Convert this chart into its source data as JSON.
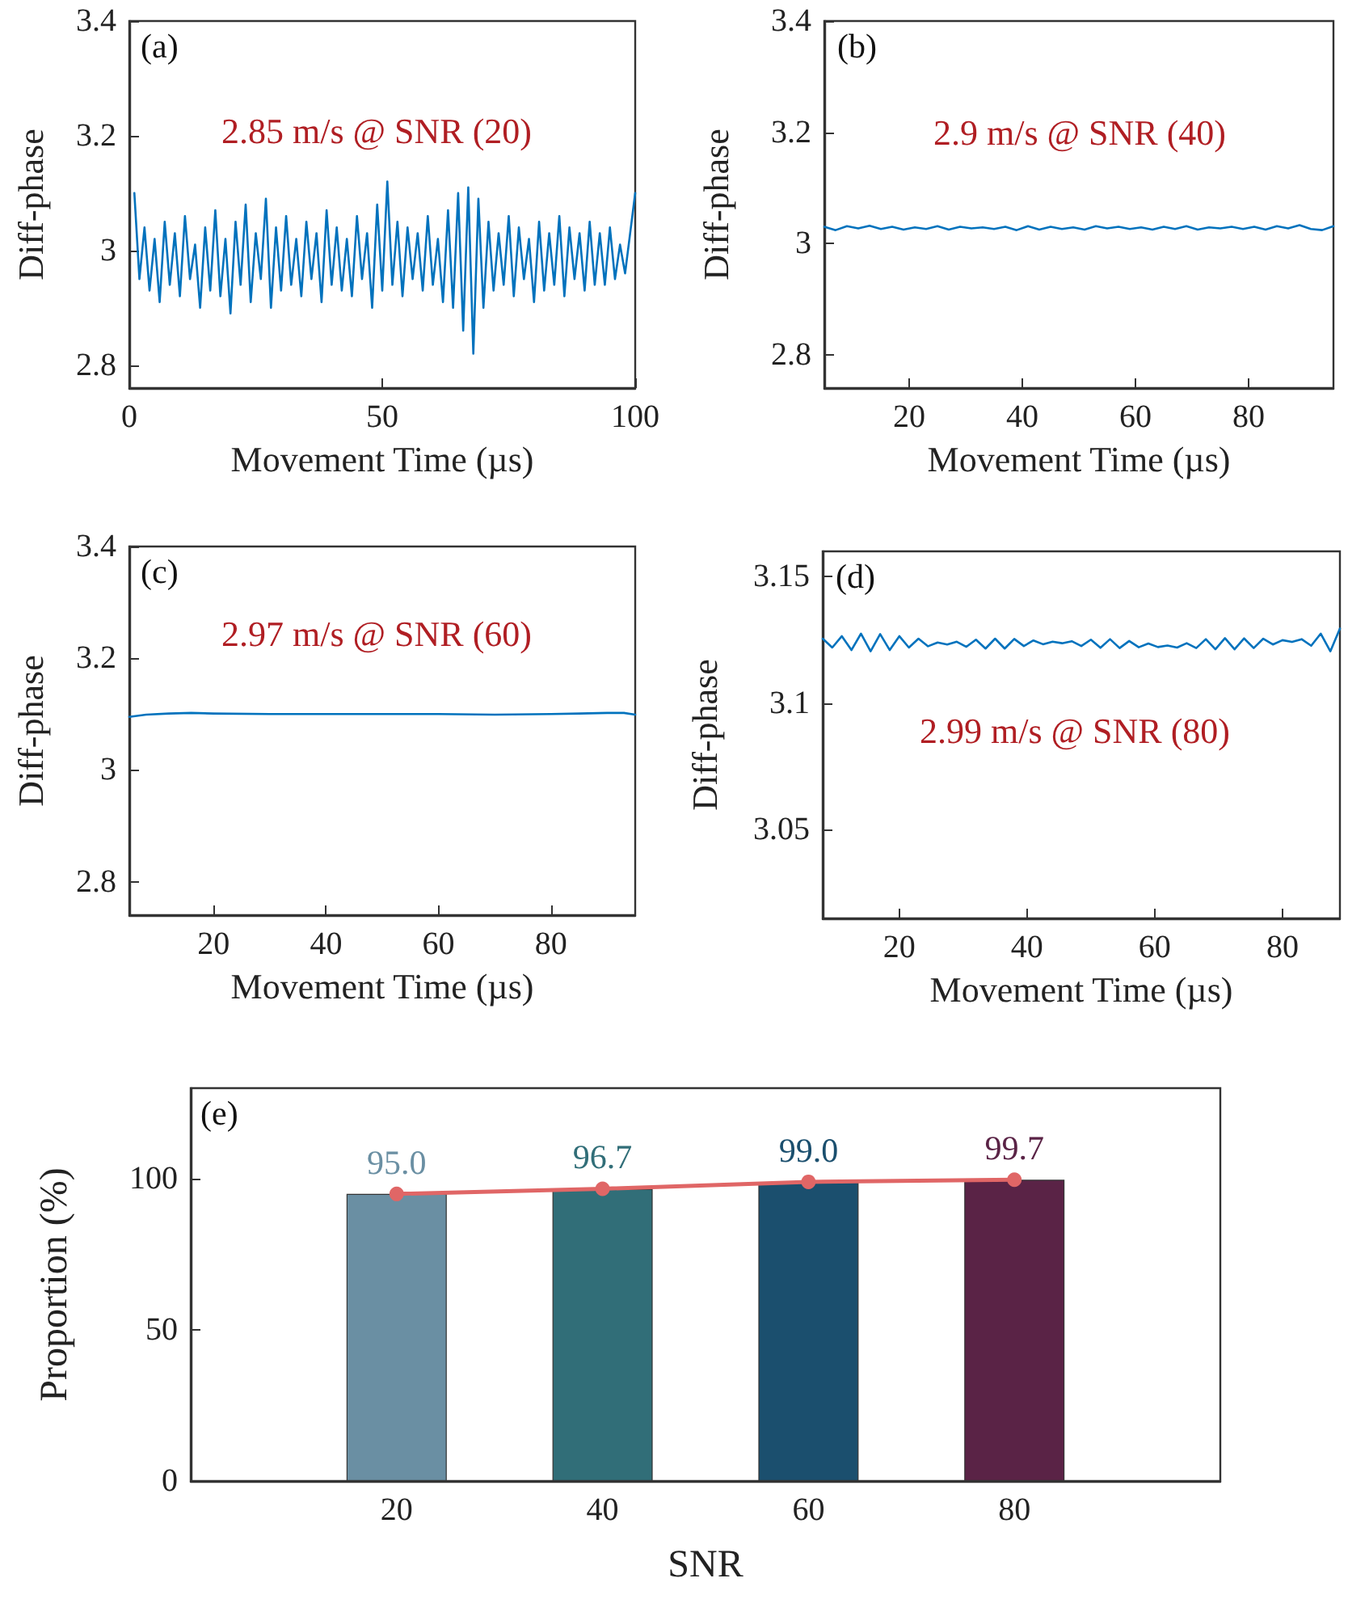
{
  "chart_data": [
    {
      "type": "line",
      "xlabel": "Movement Time (µs)",
      "ylabel": "Diff-phase",
      "annotations": [
        "(a)",
        "2.85 m/s @ SNR (20)"
      ],
      "xlim": [
        0,
        100
      ],
      "xticks": [
        0,
        50,
        100
      ],
      "ylim": [
        2.76,
        3.4
      ],
      "yticks": [
        2.8,
        3,
        3.2,
        3.4
      ],
      "grid": false,
      "series": [
        {
          "color": "#0072bd",
          "x": [
            1,
            2,
            3,
            4,
            5,
            6,
            7,
            8,
            9,
            10,
            11,
            12,
            13,
            14,
            15,
            16,
            17,
            18,
            19,
            20,
            21,
            22,
            23,
            24,
            25,
            26,
            27,
            28,
            29,
            30,
            31,
            32,
            33,
            34,
            35,
            36,
            37,
            38,
            39,
            40,
            41,
            42,
            43,
            44,
            45,
            46,
            47,
            48,
            49,
            50,
            51,
            52,
            53,
            54,
            55,
            56,
            57,
            58,
            59,
            60,
            61,
            62,
            63,
            64,
            65,
            66,
            67,
            68,
            69,
            70,
            71,
            72,
            73,
            74,
            75,
            76,
            77,
            78,
            79,
            80,
            81,
            82,
            83,
            84,
            85,
            86,
            87,
            88,
            89,
            90,
            91,
            92,
            93,
            94,
            95,
            96,
            97,
            98,
            100
          ],
          "values": [
            3.1,
            2.95,
            3.04,
            2.93,
            3.02,
            2.91,
            3.05,
            2.94,
            3.03,
            2.92,
            3.06,
            2.95,
            3.01,
            2.9,
            3.04,
            2.93,
            3.07,
            2.92,
            3.02,
            2.89,
            3.05,
            2.94,
            3.08,
            2.91,
            3.03,
            2.95,
            3.09,
            2.9,
            3.04,
            2.93,
            3.06,
            2.94,
            3.02,
            2.92,
            3.05,
            2.95,
            3.03,
            2.91,
            3.07,
            2.94,
            3.04,
            2.93,
            3.02,
            2.92,
            3.06,
            2.95,
            3.03,
            2.9,
            3.08,
            2.93,
            3.12,
            2.94,
            3.05,
            2.92,
            3.04,
            2.95,
            3.03,
            2.93,
            3.06,
            2.94,
            3.02,
            2.91,
            3.07,
            2.9,
            3.1,
            2.86,
            3.11,
            2.82,
            3.09,
            2.9,
            3.05,
            2.93,
            3.03,
            2.94,
            3.06,
            2.92,
            3.04,
            2.95,
            3.02,
            2.91,
            3.05,
            2.93,
            3.03,
            2.94,
            3.06,
            2.92,
            3.04,
            2.95,
            3.03,
            2.93,
            3.05,
            2.94,
            3.03,
            2.94,
            3.04,
            2.95,
            3.01,
            2.96,
            3.1
          ]
        }
      ]
    },
    {
      "type": "line",
      "xlabel": "Movement Time (µs)",
      "ylabel": "Diff-phase",
      "annotations": [
        "(b)",
        "2.9 m/s @ SNR (40)"
      ],
      "xlim": [
        5,
        95
      ],
      "xticks": [
        20,
        40,
        60,
        80
      ],
      "ylim": [
        2.74,
        3.4
      ],
      "yticks": [
        2.8,
        3,
        3.2,
        3.4
      ],
      "grid": false,
      "series": [
        {
          "color": "#0072bd",
          "x": [
            5,
            7,
            9,
            11,
            13,
            15,
            17,
            19,
            21,
            23,
            25,
            27,
            29,
            31,
            33,
            35,
            37,
            39,
            41,
            43,
            45,
            47,
            49,
            51,
            53,
            55,
            57,
            59,
            61,
            63,
            65,
            67,
            69,
            71,
            73,
            75,
            77,
            79,
            81,
            83,
            85,
            87,
            89,
            91,
            93,
            95
          ],
          "values": [
            3.03,
            3.024,
            3.031,
            3.027,
            3.032,
            3.026,
            3.03,
            3.025,
            3.029,
            3.026,
            3.031,
            3.025,
            3.03,
            3.027,
            3.029,
            3.026,
            3.03,
            3.024,
            3.031,
            3.025,
            3.03,
            3.026,
            3.029,
            3.025,
            3.031,
            3.027,
            3.03,
            3.026,
            3.029,
            3.025,
            3.03,
            3.026,
            3.031,
            3.025,
            3.029,
            3.027,
            3.03,
            3.026,
            3.03,
            3.025,
            3.031,
            3.027,
            3.033,
            3.026,
            3.024,
            3.031
          ]
        }
      ]
    },
    {
      "type": "line",
      "xlabel": "Movement Time (µs)",
      "ylabel": "Diff-phase",
      "annotations": [
        "(c)",
        "2.97 m/s @ SNR (60)"
      ],
      "xlim": [
        5,
        95
      ],
      "xticks": [
        20,
        40,
        60,
        80
      ],
      "ylim": [
        2.74,
        3.4
      ],
      "yticks": [
        2.8,
        3,
        3.2,
        3.4
      ],
      "grid": false,
      "series": [
        {
          "color": "#0072bd",
          "x": [
            5,
            8,
            12,
            16,
            20,
            30,
            40,
            50,
            60,
            70,
            80,
            85,
            90,
            93,
            95
          ],
          "values": [
            3.095,
            3.099,
            3.101,
            3.102,
            3.101,
            3.1,
            3.1,
            3.1,
            3.1,
            3.099,
            3.1,
            3.101,
            3.102,
            3.102,
            3.099
          ]
        }
      ]
    },
    {
      "type": "line",
      "xlabel": "Movement Time (µs)",
      "ylabel": "Diff-phase",
      "annotations": [
        "(d)",
        "2.99 m/s @ SNR (80)"
      ],
      "xlim": [
        8,
        89
      ],
      "xticks": [
        20,
        40,
        60,
        80
      ],
      "ylim": [
        3.015,
        3.16
      ],
      "yticks": [
        3.05,
        3.1,
        3.15
      ],
      "grid": false,
      "series": [
        {
          "color": "#0072bd",
          "x": [
            8,
            9.5,
            11,
            12.5,
            14,
            15.5,
            17,
            18.5,
            20,
            21.5,
            23,
            24.5,
            26,
            27.5,
            29,
            30.5,
            32,
            33.5,
            35,
            36.5,
            38,
            39.5,
            41,
            42.5,
            44,
            45.5,
            47,
            48.5,
            50,
            51.5,
            53,
            54.5,
            56,
            57.5,
            59,
            60.5,
            62,
            63.5,
            65,
            66.5,
            68,
            69.5,
            71,
            72.5,
            74,
            75.5,
            77,
            78.5,
            80,
            81.5,
            83,
            84.5,
            86,
            87.5,
            89
          ],
          "values": [
            3.1255,
            3.122,
            3.1265,
            3.121,
            3.1275,
            3.1205,
            3.1273,
            3.121,
            3.1265,
            3.122,
            3.1255,
            3.1225,
            3.124,
            3.1232,
            3.1243,
            3.1223,
            3.1251,
            3.1216,
            3.1255,
            3.1216,
            3.1254,
            3.1226,
            3.1248,
            3.1233,
            3.1243,
            3.1237,
            3.1245,
            3.1226,
            3.1251,
            3.1219,
            3.1253,
            3.1218,
            3.1246,
            3.1221,
            3.1236,
            3.1222,
            3.1228,
            3.122,
            3.1237,
            3.1218,
            3.1253,
            3.1213,
            3.1257,
            3.1213,
            3.1256,
            3.1218,
            3.1255,
            3.1232,
            3.1249,
            3.1242,
            3.1253,
            3.1227,
            3.1275,
            3.1205,
            3.1295
          ]
        }
      ]
    },
    {
      "type": "bar",
      "xlabel": "SNR",
      "ylabel": "Proportion (%)",
      "annotations": [
        "(e)"
      ],
      "xlim": [
        0,
        100
      ],
      "xticks": [
        20,
        40,
        60,
        80
      ],
      "ylim": [
        0,
        130
      ],
      "yticks": [
        0,
        50,
        100
      ],
      "grid": false,
      "marker": "circle",
      "series": [
        {
          "x": [
            20,
            40,
            60,
            80
          ],
          "values": [
            95.0,
            96.7,
            99.0,
            99.7
          ],
          "colors": [
            "#6a8fa3",
            "#316e78",
            "#1b4f6e",
            "#5a2346"
          ],
          "value_labels": [
            "95.0",
            "96.7",
            "99.0",
            "99.7"
          ]
        },
        {
          "type": "line",
          "color": "#e06666",
          "x": [
            20,
            40,
            60,
            80
          ],
          "values": [
            95.0,
            96.7,
            99.0,
            99.7
          ]
        }
      ]
    }
  ]
}
